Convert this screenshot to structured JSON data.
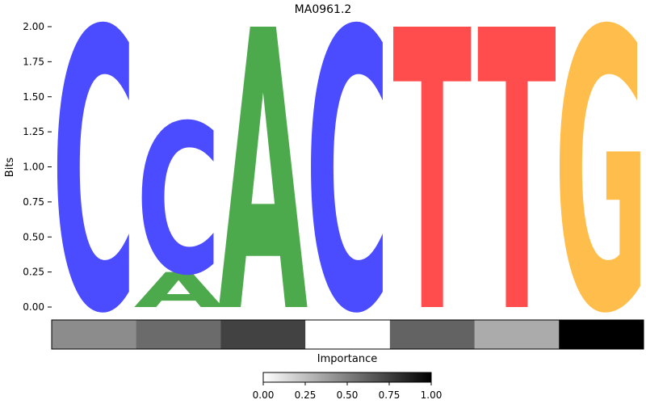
{
  "chart_data": [
    {
      "type": "sequence-logo",
      "title": "MA0961.2",
      "ylabel": "Bits",
      "ylim": [
        0,
        2
      ],
      "yticks": [
        "0.00",
        "0.25",
        "0.50",
        "0.75",
        "1.00",
        "1.25",
        "1.50",
        "1.75",
        "2.00"
      ],
      "colors": {
        "A": "#4CAA4C",
        "C": "#4B4BFF",
        "G": "#FFBE4B",
        "T": "#FF4C4C"
      },
      "positions": [
        {
          "position": 1,
          "letters": [
            {
              "base": "C",
              "bits": 2.0
            }
          ]
        },
        {
          "position": 2,
          "letters": [
            {
              "base": "A",
              "bits": 0.25
            },
            {
              "base": "C",
              "bits": 1.07
            }
          ]
        },
        {
          "position": 3,
          "letters": [
            {
              "base": "A",
              "bits": 2.0
            }
          ]
        },
        {
          "position": 4,
          "letters": [
            {
              "base": "C",
              "bits": 2.0
            }
          ]
        },
        {
          "position": 5,
          "letters": [
            {
              "base": "T",
              "bits": 2.0
            }
          ]
        },
        {
          "position": 6,
          "letters": [
            {
              "base": "T",
              "bits": 2.0
            }
          ]
        },
        {
          "position": 7,
          "letters": [
            {
              "base": "G",
              "bits": 2.0
            }
          ]
        }
      ]
    },
    {
      "type": "heatmap",
      "xlabel": "Importance",
      "values": [
        0.45,
        0.58,
        0.74,
        0.0,
        0.61,
        0.33,
        1.0
      ],
      "colorbar": {
        "ticks": [
          "0.00",
          "0.25",
          "0.50",
          "0.75",
          "1.00"
        ],
        "range": [
          0,
          1
        ]
      }
    }
  ]
}
